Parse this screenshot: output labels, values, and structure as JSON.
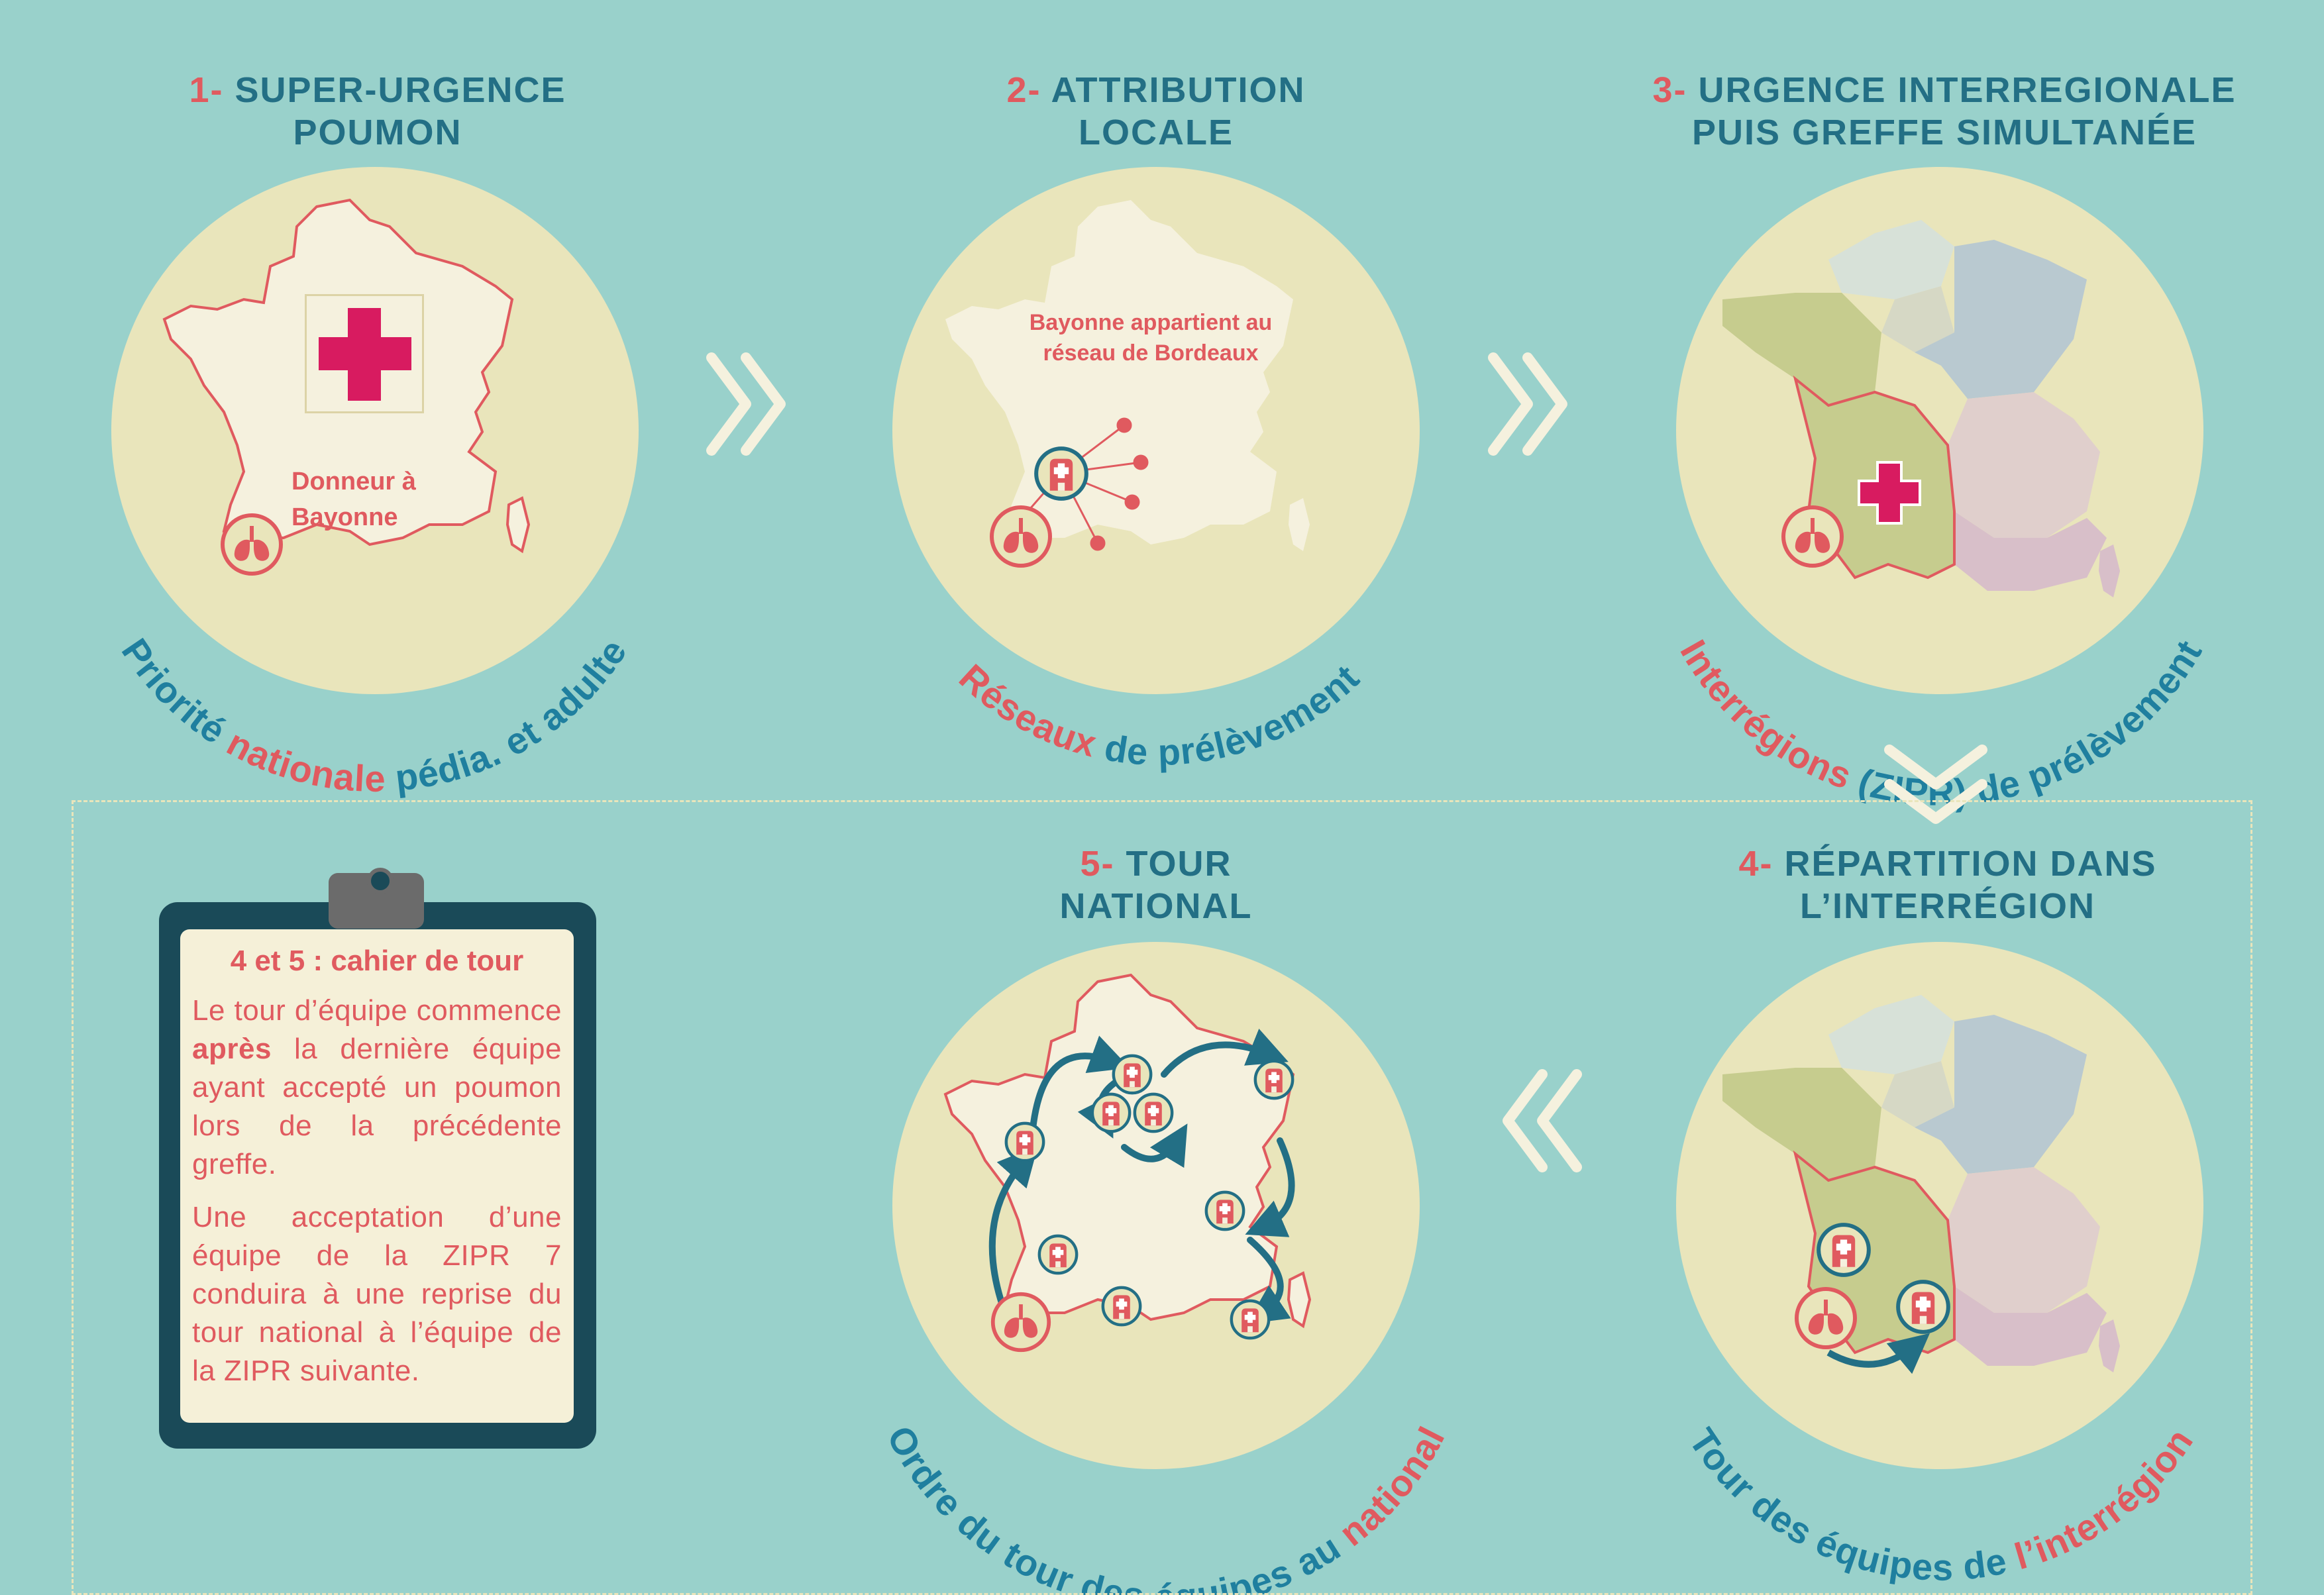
{
  "steps": [
    {
      "num": "1-",
      "title_line1": "SUPER-URGENCE",
      "title_line2": "POUMON"
    },
    {
      "num": "2-",
      "title_line1": "ATTRIBUTION",
      "title_line2": "LOCALE"
    },
    {
      "num": "3-",
      "title_line1": "URGENCE INTERREGIONALE",
      "title_line2": "PUIS GREFFE SIMULTANÉE"
    },
    {
      "num": "4-",
      "title_line1": "RÉPARTITION DANS",
      "title_line2": "L’INTERRÉGION"
    },
    {
      "num": "5-",
      "title_line1": "TOUR",
      "title_line2": "NATIONAL"
    }
  ],
  "map_labels": {
    "donor_line1": "Donneur à",
    "donor_line2": "Bayonne",
    "network_line1": "Bayonne appartient au",
    "network_line2": "réseau de Bordeaux"
  },
  "arc_labels": {
    "c1": {
      "p1": "Priorité ",
      "p2": "nationale",
      "p3": " pédia. et adulte"
    },
    "c2": {
      "p1": "Réseaux",
      "p2": " de prélèvement"
    },
    "c3": {
      "p1": "Interrégions",
      "p2": " (ZIPR) de prélèvement"
    },
    "c4": {
      "p1": "Tour des équipes de ",
      "p2": "l’interrégion"
    },
    "c5": {
      "p1": "Ordre du tour des équipes au ",
      "p2": "national"
    }
  },
  "clipboard": {
    "heading": "4 et 5 : cahier de tour",
    "para1_a": "Le tour d’équipe commence ",
    "para1_bold": "après",
    "para1_b": " la dernière équipe ayant accepté un poumon lors de la précédente greffe.",
    "para2": "Une acceptation d’une équipe de la ZIPR 7 conduira à une reprise du tour national à l’équipe de la ZIPR suivante."
  },
  "colors": {
    "background": "#99d1cb",
    "circle": "#e9e5bb",
    "accent_red": "#e05a5f",
    "accent_blue": "#236f85",
    "cross": "#d81b60",
    "map_fill": "#f5f1de"
  },
  "icons": [
    "red-cross-icon",
    "lungs-icon",
    "hospital-icon",
    "chevron-right-icon",
    "chevron-down-icon",
    "chevron-left-icon",
    "arrow-icon"
  ]
}
